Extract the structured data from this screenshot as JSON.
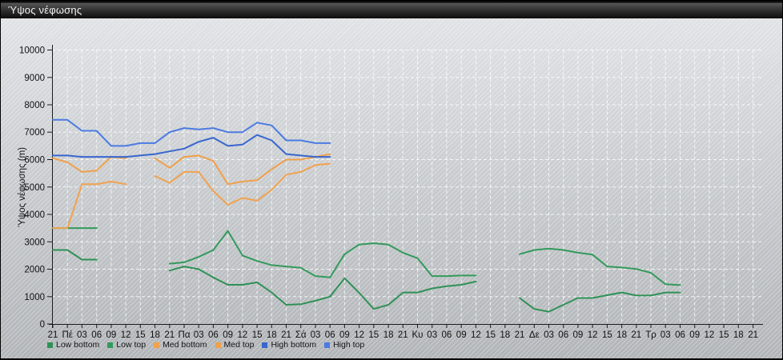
{
  "window": {
    "title": "Ύψος νέφωσης"
  },
  "chart_data": {
    "type": "line",
    "title": "Ύψος νέφωσης",
    "ylabel": "Ύψος νέφωσης (m)",
    "ylim": [
      0,
      10000
    ],
    "grid": true,
    "legend_position": "bottom",
    "y_ticks": [
      0,
      1000,
      2000,
      3000,
      4000,
      5000,
      6000,
      7000,
      8000,
      9000,
      10000
    ],
    "x_tick_labels": [
      "21",
      "Πέ",
      "03",
      "06",
      "09",
      "12",
      "15",
      "18",
      "21",
      "Πα",
      "03",
      "06",
      "09",
      "12",
      "15",
      "18",
      "21",
      "Σά",
      "03",
      "06",
      "09",
      "12",
      "15",
      "18",
      "21",
      "Κυ",
      "03",
      "06",
      "09",
      "12",
      "15",
      "18",
      "21",
      "Δε",
      "03",
      "06",
      "09",
      "12",
      "15",
      "18",
      "21",
      "Τρ",
      "03",
      "06",
      "09",
      "12",
      "15",
      "18",
      "21"
    ],
    "series": [
      {
        "name": "Low bottom",
        "color": "#2f9156",
        "values": [
          2700,
          2700,
          2350,
          2350,
          null,
          null,
          null,
          null,
          1950,
          2100,
          2000,
          1700,
          1430,
          1430,
          1520,
          1150,
          700,
          720,
          850,
          1000,
          1670,
          1140,
          550,
          700,
          1150,
          1150,
          1300,
          1380,
          1430,
          1550,
          null,
          null,
          950,
          550,
          450,
          700,
          950,
          950,
          1050,
          1150,
          1040,
          1040,
          1150,
          1150,
          null,
          null,
          null,
          null,
          null
        ]
      },
      {
        "name": "Low top",
        "color": "#339a5c",
        "values": [
          3500,
          3500,
          3500,
          3500,
          null,
          null,
          null,
          null,
          2200,
          2250,
          2450,
          2700,
          3400,
          2500,
          2300,
          2150,
          2100,
          2050,
          1750,
          1700,
          2550,
          2900,
          2950,
          2900,
          2600,
          2400,
          1750,
          1750,
          1770,
          1770,
          null,
          null,
          2550,
          2700,
          2750,
          2700,
          2600,
          2530,
          2100,
          2060,
          2010,
          1870,
          1450,
          1420,
          null,
          null,
          null,
          null,
          null
        ]
      },
      {
        "name": "Med bottom",
        "color": "#f0a24e",
        "values": [
          3500,
          3500,
          5100,
          5100,
          5200,
          5100,
          null,
          5400,
          5150,
          5550,
          5550,
          4850,
          4350,
          4600,
          4500,
          4900,
          5450,
          5550,
          5800,
          5850,
          null,
          null,
          null,
          null,
          null,
          null,
          null,
          null,
          null,
          null,
          null,
          null,
          null,
          null,
          null,
          null,
          null,
          null,
          null,
          null,
          null,
          null,
          null,
          null,
          null,
          null,
          null,
          null,
          null
        ]
      },
      {
        "name": "Med top",
        "color": "#efa04a",
        "values": [
          6050,
          5900,
          5550,
          5600,
          6100,
          6050,
          null,
          6050,
          5700,
          6100,
          6150,
          5950,
          5100,
          5200,
          5250,
          5650,
          6000,
          6000,
          6100,
          6200,
          null,
          null,
          null,
          null,
          null,
          null,
          null,
          null,
          null,
          null,
          null,
          null,
          null,
          null,
          null,
          null,
          null,
          null,
          null,
          null,
          null,
          null,
          null,
          null,
          null,
          null,
          null,
          null,
          null
        ]
      },
      {
        "name": "High bottom",
        "color": "#3866ce",
        "values": [
          6150,
          6150,
          6100,
          6100,
          6100,
          6100,
          6150,
          6200,
          6300,
          6400,
          6650,
          6800,
          6500,
          6550,
          6900,
          6700,
          6200,
          6150,
          6100,
          6100,
          null,
          null,
          null,
          null,
          null,
          null,
          null,
          null,
          null,
          null,
          null,
          null,
          null,
          null,
          null,
          null,
          null,
          null,
          null,
          null,
          null,
          null,
          null,
          null,
          null,
          null,
          null,
          null,
          null
        ]
      },
      {
        "name": "High top",
        "color": "#4b7be2",
        "values": [
          7450,
          7450,
          7050,
          7050,
          6500,
          6500,
          6600,
          6600,
          7000,
          7150,
          7100,
          7150,
          7000,
          7000,
          7350,
          7250,
          6700,
          6700,
          6600,
          6600,
          null,
          null,
          null,
          null,
          null,
          null,
          null,
          null,
          null,
          null,
          null,
          null,
          null,
          null,
          null,
          null,
          null,
          null,
          null,
          null,
          null,
          null,
          null,
          null,
          null,
          null,
          null,
          null,
          null
        ]
      }
    ]
  }
}
